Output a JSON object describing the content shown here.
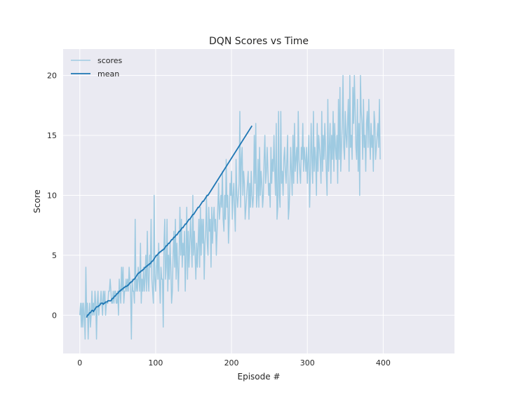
{
  "chart_data": {
    "type": "line",
    "title": "DQN Scores vs Time",
    "xlabel": "Episode #",
    "ylabel": "Score",
    "xlim": [
      -22,
      494
    ],
    "ylim": [
      -3.2,
      22.2
    ],
    "xticks": [
      0,
      100,
      200,
      300,
      400
    ],
    "yticks": [
      0,
      5,
      10,
      15,
      20
    ],
    "grid": true,
    "legend": "top-left",
    "colors": {
      "plot_bg": "#EAEAF2",
      "grid": "#FFFFFF",
      "scores": "#9ECAE1",
      "mean": "#1F77B4"
    },
    "series": [
      {
        "name": "scores",
        "x_start": 0,
        "values": [
          0,
          1,
          -1,
          1,
          -1,
          1,
          0,
          -2,
          4,
          0,
          1,
          -2,
          0,
          1,
          -1,
          0,
          2,
          0,
          1,
          0,
          2,
          1,
          -2,
          1,
          2,
          0,
          1,
          1,
          2,
          1,
          0,
          2,
          1,
          2,
          0,
          1,
          1,
          1,
          2,
          2,
          3,
          2,
          1,
          1,
          2,
          1,
          2,
          2,
          1,
          1,
          2,
          0,
          3,
          2,
          1,
          4,
          2,
          4,
          1,
          2,
          2,
          3,
          2,
          3,
          2,
          4,
          3,
          2,
          -2,
          3,
          2,
          2,
          1,
          8,
          2,
          3,
          2,
          4,
          3,
          2,
          6,
          1,
          3,
          2,
          4,
          2,
          3,
          5,
          2,
          7,
          3,
          2,
          5,
          4,
          8,
          3,
          2,
          1,
          10,
          3,
          2,
          4,
          5,
          3,
          6,
          3,
          1,
          4,
          3,
          3,
          -1,
          6,
          8,
          3,
          4,
          8,
          2,
          5,
          3,
          6,
          4,
          1,
          2,
          5,
          7,
          4,
          8,
          3,
          6,
          4,
          2,
          5,
          9,
          5,
          8,
          4,
          6,
          5,
          7,
          2,
          5,
          9,
          3,
          7,
          4,
          6,
          8,
          6,
          4,
          10,
          5,
          7,
          5,
          3,
          6,
          4,
          6,
          8,
          4,
          9,
          5,
          8,
          6,
          8,
          3,
          6,
          7,
          10,
          6,
          5,
          9,
          7,
          8,
          4,
          9,
          6,
          8,
          9,
          7,
          8,
          5,
          7,
          9,
          11,
          8,
          9,
          10,
          9,
          12,
          8,
          7,
          10,
          8,
          13,
          9,
          10,
          6,
          8,
          11,
          10,
          12,
          8,
          10,
          11,
          9,
          7,
          13,
          10,
          9,
          10,
          11,
          17,
          9,
          13,
          14,
          10,
          12,
          11,
          8,
          9,
          10,
          11,
          12,
          8,
          11,
          9,
          12,
          10,
          9,
          10,
          15,
          11,
          16,
          9,
          10,
          13,
          9,
          14,
          10,
          12,
          11,
          9,
          10,
          13,
          15,
          11,
          12,
          14,
          12,
          10,
          11,
          9,
          14,
          11,
          13,
          12,
          15,
          12,
          10,
          16,
          8,
          9,
          17,
          10,
          9,
          17,
          11,
          12,
          10,
          13,
          14,
          12,
          11,
          13,
          15,
          8,
          9,
          11,
          14,
          12,
          10,
          15,
          11,
          16,
          12,
          13,
          14,
          11,
          17,
          13,
          12,
          11,
          14,
          13,
          16,
          12,
          14,
          13,
          12,
          14,
          11,
          13,
          15,
          9,
          12,
          16,
          13,
          11,
          17,
          12,
          14,
          13,
          10,
          16,
          12,
          15,
          14,
          13,
          11,
          17,
          12,
          15,
          13,
          16,
          14,
          12,
          10,
          18,
          12,
          14,
          16,
          11,
          15,
          13,
          17,
          12,
          16,
          14,
          13,
          15,
          11,
          18,
          13,
          19,
          12,
          14,
          16,
          20,
          14,
          13,
          17,
          15,
          14,
          16,
          18,
          12,
          20,
          14,
          15,
          13,
          19,
          16,
          20,
          17,
          14,
          13,
          18,
          12,
          16,
          10,
          20,
          17,
          16,
          13,
          18,
          14,
          15,
          12,
          16,
          17,
          14,
          18,
          15,
          13,
          16,
          14,
          15,
          12,
          17,
          16,
          13,
          14,
          15,
          16,
          14,
          18,
          13
        ],
        "note_count": 0
      },
      {
        "name": "mean",
        "x_start": 9,
        "values": [
          -0.2,
          0,
          0,
          0.1,
          0.2,
          0.2,
          0.3,
          0.4,
          0.4,
          0.3,
          0.4,
          0.5,
          0.6,
          0.7,
          0.7,
          0.7,
          0.8,
          0.8,
          0.9,
          1.0,
          1.0,
          1.0,
          0.9,
          1.0,
          1.0,
          1.1,
          1.1,
          1.1,
          1.2,
          1.2,
          1.2,
          1.2,
          1.2,
          1.3,
          1.4,
          1.4,
          1.5,
          1.6,
          1.6,
          1.7,
          1.8,
          1.8,
          1.9,
          2.0,
          2.0,
          2.1,
          2.1,
          2.2,
          2.2,
          2.3,
          2.3,
          2.4,
          2.4,
          2.4,
          2.5,
          2.5,
          2.6,
          2.7,
          2.7,
          2.8,
          2.8,
          2.9,
          3.0,
          3.0,
          3.1,
          3.2,
          3.3,
          3.4,
          3.5,
          3.5,
          3.6,
          3.6,
          3.7,
          3.7,
          3.8,
          3.8,
          3.9,
          4.0,
          4.0,
          4.1,
          4.1,
          4.2,
          4.2,
          4.3,
          4.3,
          4.4,
          4.5,
          4.5,
          4.6,
          4.7,
          4.8,
          4.9,
          5.0,
          5.0,
          5.1,
          5.2,
          5.2,
          5.3,
          5.3,
          5.4,
          5.4,
          5.5,
          5.5,
          5.6,
          5.7,
          5.8,
          5.8,
          5.9,
          6.0,
          6.0,
          6.1,
          6.2,
          6.3,
          6.3,
          6.4,
          6.5,
          6.5,
          6.6,
          6.7,
          6.7,
          6.8,
          6.9,
          7.0,
          7.0,
          7.1,
          7.2,
          7.3,
          7.3,
          7.4,
          7.5,
          7.6,
          7.6,
          7.7,
          7.8,
          7.9,
          8.0,
          8.0,
          8.1,
          8.2,
          8.3,
          8.4,
          8.4,
          8.5,
          8.6,
          8.7,
          8.8,
          8.9,
          9.0,
          9.0,
          9.1,
          9.2,
          9.3,
          9.4,
          9.5,
          9.5,
          9.6,
          9.7,
          9.8,
          9.9,
          10.0,
          10.0,
          10.1,
          10.2,
          10.3,
          10.4,
          10.5,
          10.6,
          10.7,
          10.8,
          10.9,
          11.0,
          11.1,
          11.2,
          11.3,
          11.4,
          11.5,
          11.6,
          11.7,
          11.8,
          11.9,
          12.0,
          12.1,
          12.2,
          12.3,
          12.4,
          12.5,
          12.6,
          12.7,
          12.8,
          12.9,
          13.0,
          13.1,
          13.2,
          13.3,
          13.4,
          13.5,
          13.6,
          13.7,
          13.8,
          13.9,
          14.0,
          14.1,
          14.2,
          14.3,
          14.4,
          14.5,
          14.6,
          14.7,
          14.8,
          14.9,
          15.0,
          15.1,
          15.2,
          15.3,
          15.4,
          15.5,
          15.6,
          15.7,
          15.8
        ]
      }
    ]
  }
}
